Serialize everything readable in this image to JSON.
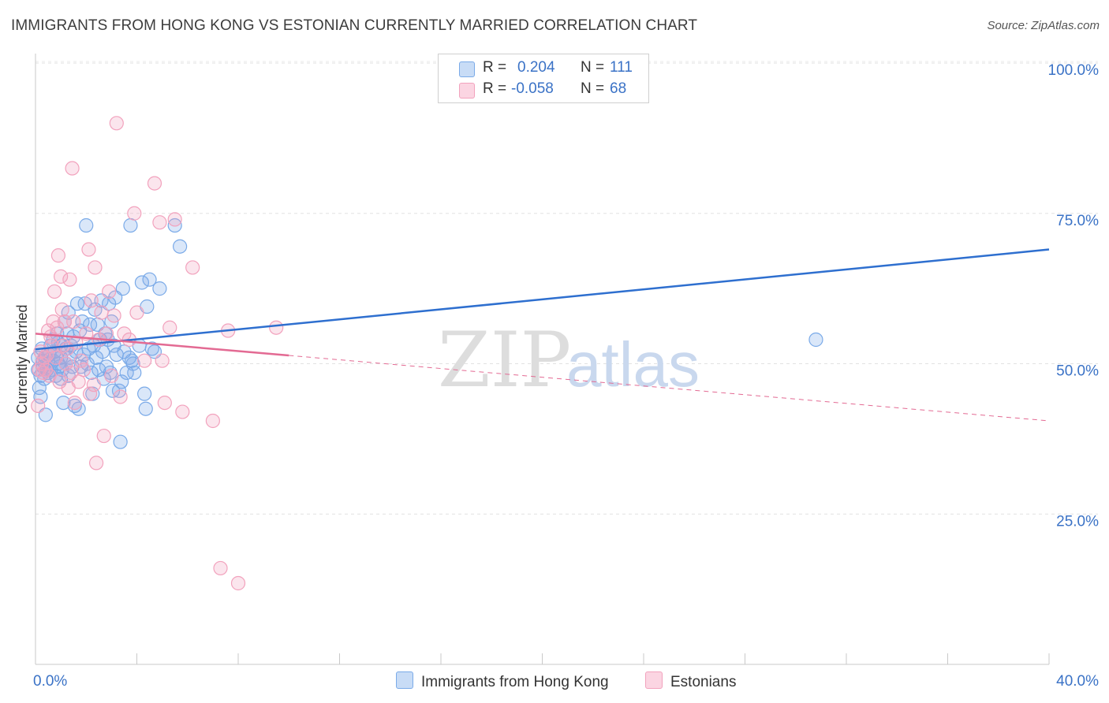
{
  "title": "IMMIGRANTS FROM HONG KONG VS ESTONIAN CURRENTLY MARRIED CORRELATION CHART",
  "source": "Source: ZipAtlas.com",
  "watermark": {
    "zip": "ZIP",
    "atlas": "atlas"
  },
  "legend": {
    "rows": [
      {
        "r_label": "R =",
        "r_value": "0.204",
        "n_label": "N =",
        "n_value": "111",
        "color": "#7aaae8"
      },
      {
        "r_label": "R =",
        "r_value": "-0.058",
        "n_label": "N =",
        "n_value": "68",
        "color": "#f2a2bd"
      }
    ]
  },
  "bottom_legend": [
    {
      "label": "Immigrants from Hong Kong",
      "color": "#7aaae8"
    },
    {
      "label": "Estonians",
      "color": "#f2a2bd"
    }
  ],
  "chart_data": {
    "type": "scatter",
    "title": "IMMIGRANTS FROM HONG KONG VS ESTONIAN CURRENTLY MARRIED CORRELATION CHART",
    "xlabel": "",
    "ylabel": "Currently Married",
    "xlim": [
      0,
      40
    ],
    "ylim": [
      0,
      100
    ],
    "x_tick_labels": [
      "0.0%",
      "40.0%"
    ],
    "y_ticks": [
      {
        "value": 100,
        "label": "100.0%"
      },
      {
        "value": 75,
        "label": "75.0%"
      },
      {
        "value": 50,
        "label": "50.0%"
      },
      {
        "value": 25,
        "label": "25.0%"
      }
    ],
    "grid": true,
    "series": [
      {
        "name": "Immigrants from Hong Kong",
        "color": "#7aaae8",
        "line_color": "#2e6fcf",
        "trend": {
          "x_start": 0,
          "y_start": 52.4,
          "x_end": 40,
          "y_end": 69.0,
          "solid_until": 40
        },
        "points": [
          [
            0.1,
            49
          ],
          [
            0.1,
            51
          ],
          [
            0.15,
            46
          ],
          [
            0.2,
            44.5
          ],
          [
            0.2,
            48
          ],
          [
            0.25,
            52.5
          ],
          [
            0.3,
            50.5
          ],
          [
            0.3,
            49.5
          ],
          [
            0.35,
            47.5
          ],
          [
            0.4,
            41.5
          ],
          [
            0.4,
            51
          ],
          [
            0.45,
            49
          ],
          [
            0.5,
            50
          ],
          [
            0.5,
            48.5
          ],
          [
            0.55,
            51.5
          ],
          [
            0.6,
            53
          ],
          [
            0.6,
            49
          ],
          [
            0.7,
            54
          ],
          [
            0.7,
            50.5
          ],
          [
            0.75,
            52
          ],
          [
            0.8,
            48
          ],
          [
            0.8,
            51
          ],
          [
            0.85,
            55
          ],
          [
            0.9,
            50
          ],
          [
            0.9,
            53.5
          ],
          [
            0.95,
            49.5
          ],
          [
            1.0,
            47.5
          ],
          [
            1.0,
            51
          ],
          [
            1.0,
            53
          ],
          [
            1.05,
            49
          ],
          [
            1.1,
            43.5
          ],
          [
            1.15,
            57
          ],
          [
            1.2,
            50
          ],
          [
            1.2,
            52.5
          ],
          [
            1.25,
            55
          ],
          [
            1.3,
            48
          ],
          [
            1.3,
            58.5
          ],
          [
            1.35,
            51
          ],
          [
            1.4,
            53
          ],
          [
            1.45,
            49.5
          ],
          [
            1.5,
            54.5
          ],
          [
            1.55,
            43
          ],
          [
            1.6,
            52
          ],
          [
            1.65,
            60
          ],
          [
            1.7,
            42.5
          ],
          [
            1.75,
            55.5
          ],
          [
            1.8,
            49.5
          ],
          [
            1.85,
            57
          ],
          [
            1.9,
            51.5
          ],
          [
            1.95,
            60
          ],
          [
            2.0,
            73
          ],
          [
            2.05,
            50
          ],
          [
            2.1,
            52.5
          ],
          [
            2.15,
            56.5
          ],
          [
            2.2,
            48.5
          ],
          [
            2.25,
            45
          ],
          [
            2.3,
            53
          ],
          [
            2.35,
            59
          ],
          [
            2.4,
            51
          ],
          [
            2.45,
            56.5
          ],
          [
            2.5,
            49
          ],
          [
            2.55,
            54
          ],
          [
            2.6,
            60.5
          ],
          [
            2.65,
            52
          ],
          [
            2.7,
            47.5
          ],
          [
            2.75,
            55
          ],
          [
            2.8,
            49.5
          ],
          [
            2.85,
            54
          ],
          [
            2.9,
            60
          ],
          [
            2.95,
            48.5
          ],
          [
            3.0,
            57
          ],
          [
            3.05,
            45.5
          ],
          [
            3.1,
            53
          ],
          [
            3.15,
            61
          ],
          [
            3.2,
            51.5
          ],
          [
            3.3,
            45.5
          ],
          [
            3.35,
            37
          ],
          [
            3.4,
            47
          ],
          [
            3.45,
            62.5
          ],
          [
            3.5,
            52
          ],
          [
            3.6,
            48.5
          ],
          [
            3.7,
            51
          ],
          [
            3.75,
            73
          ],
          [
            3.8,
            50.5
          ],
          [
            3.85,
            50
          ],
          [
            3.9,
            48.5
          ],
          [
            4.1,
            53
          ],
          [
            4.2,
            63.5
          ],
          [
            4.3,
            45
          ],
          [
            4.35,
            42.5
          ],
          [
            4.4,
            59.5
          ],
          [
            4.5,
            64
          ],
          [
            4.6,
            52.5
          ],
          [
            4.7,
            52
          ],
          [
            4.9,
            62.5
          ],
          [
            5.5,
            73
          ],
          [
            5.7,
            69.5
          ],
          [
            30.8,
            54
          ]
        ]
      },
      {
        "name": "Estonians",
        "color": "#f2a2bd",
        "line_color": "#e36a93",
        "trend": {
          "x_start": 0,
          "y_start": 55.0,
          "x_end": 40,
          "y_end": 40.5,
          "solid_until": 10
        },
        "points": [
          [
            0.1,
            43
          ],
          [
            0.15,
            49
          ],
          [
            0.2,
            52
          ],
          [
            0.25,
            50
          ],
          [
            0.3,
            48.5
          ],
          [
            0.35,
            51
          ],
          [
            0.4,
            49
          ],
          [
            0.45,
            51.5
          ],
          [
            0.5,
            55.5
          ],
          [
            0.55,
            48
          ],
          [
            0.6,
            54.5
          ],
          [
            0.65,
            53
          ],
          [
            0.7,
            57
          ],
          [
            0.75,
            62
          ],
          [
            0.8,
            51
          ],
          [
            0.85,
            56
          ],
          [
            0.9,
            68
          ],
          [
            0.95,
            47
          ],
          [
            1.0,
            64.5
          ],
          [
            1.05,
            59
          ],
          [
            1.1,
            53
          ],
          [
            1.15,
            57
          ],
          [
            1.2,
            50
          ],
          [
            1.25,
            52.5
          ],
          [
            1.3,
            46
          ],
          [
            1.35,
            64
          ],
          [
            1.4,
            48.5
          ],
          [
            1.45,
            82.5
          ],
          [
            1.5,
            57
          ],
          [
            1.55,
            43.5
          ],
          [
            1.6,
            53.5
          ],
          [
            1.7,
            47
          ],
          [
            1.8,
            50.5
          ],
          [
            1.9,
            49
          ],
          [
            2.0,
            55
          ],
          [
            2.1,
            69
          ],
          [
            2.15,
            45
          ],
          [
            2.2,
            60.5
          ],
          [
            2.3,
            46.5
          ],
          [
            2.35,
            66
          ],
          [
            2.4,
            33.5
          ],
          [
            2.5,
            54
          ],
          [
            2.6,
            58.5
          ],
          [
            2.7,
            38
          ],
          [
            2.8,
            55
          ],
          [
            2.9,
            62
          ],
          [
            3.0,
            48
          ],
          [
            3.1,
            58
          ],
          [
            3.2,
            90
          ],
          [
            3.35,
            44.5
          ],
          [
            3.5,
            55
          ],
          [
            3.7,
            54
          ],
          [
            3.9,
            75
          ],
          [
            4.0,
            58.5
          ],
          [
            4.3,
            50.5
          ],
          [
            4.7,
            80
          ],
          [
            4.9,
            73.5
          ],
          [
            5.0,
            50.5
          ],
          [
            5.1,
            43.5
          ],
          [
            5.3,
            56
          ],
          [
            5.5,
            74
          ],
          [
            5.8,
            42
          ],
          [
            6.2,
            66
          ],
          [
            7.0,
            40.5
          ],
          [
            7.3,
            16
          ],
          [
            7.6,
            55.5
          ],
          [
            8.0,
            13.5
          ],
          [
            9.5,
            56
          ]
        ]
      }
    ]
  }
}
